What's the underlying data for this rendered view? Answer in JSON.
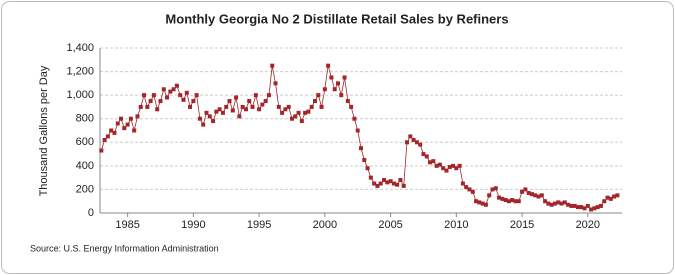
{
  "chart_data": {
    "type": "line",
    "title": "Monthly Georgia No 2 Distillate Retail Sales by Refiners",
    "y_label": "Thousand Gallons per Day",
    "source": "Source: U.S. Energy Information Administration",
    "x": [
      1983,
      1983.25,
      1983.5,
      1983.75,
      1984,
      1984.25,
      1984.5,
      1984.75,
      1985,
      1985.25,
      1985.5,
      1985.75,
      1986,
      1986.25,
      1986.5,
      1986.75,
      1987,
      1987.25,
      1987.5,
      1987.75,
      1988,
      1988.25,
      1988.5,
      1988.75,
      1989,
      1989.25,
      1989.5,
      1989.75,
      1990,
      1990.25,
      1990.5,
      1990.75,
      1991,
      1991.25,
      1991.5,
      1991.75,
      1992,
      1992.25,
      1992.5,
      1992.75,
      1993,
      1993.25,
      1993.5,
      1993.75,
      1994,
      1994.25,
      1994.5,
      1994.75,
      1995,
      1995.25,
      1995.5,
      1995.75,
      1996,
      1996.25,
      1996.5,
      1996.75,
      1997,
      1997.25,
      1997.5,
      1997.75,
      1998,
      1998.25,
      1998.5,
      1998.75,
      1999,
      1999.25,
      1999.5,
      1999.75,
      2000,
      2000.25,
      2000.5,
      2000.75,
      2001,
      2001.25,
      2001.5,
      2001.75,
      2002,
      2002.25,
      2002.5,
      2002.75,
      2003,
      2003.25,
      2003.5,
      2003.75,
      2004,
      2004.25,
      2004.5,
      2004.75,
      2005,
      2005.25,
      2005.5,
      2005.75,
      2006,
      2006.25,
      2006.5,
      2006.75,
      2007,
      2007.25,
      2007.5,
      2007.75,
      2008,
      2008.25,
      2008.5,
      2008.75,
      2009,
      2009.25,
      2009.5,
      2009.75,
      2010,
      2010.25,
      2010.5,
      2010.75,
      2011,
      2011.25,
      2011.5,
      2011.75,
      2012,
      2012.25,
      2012.5,
      2012.75,
      2013,
      2013.25,
      2013.5,
      2013.75,
      2014,
      2014.25,
      2014.5,
      2014.75,
      2015,
      2015.25,
      2015.5,
      2015.75,
      2016,
      2016.25,
      2016.5,
      2016.75,
      2017,
      2017.25,
      2017.5,
      2017.75,
      2018,
      2018.25,
      2018.5,
      2018.75,
      2019,
      2019.25,
      2019.5,
      2019.75,
      2020,
      2020.25,
      2020.5,
      2020.75,
      2021,
      2021.25,
      2021.5,
      2021.75,
      2022,
      2022.25
    ],
    "series": [
      {
        "color": "#a3262a",
        "values": [
          530,
          620,
          650,
          700,
          680,
          760,
          800,
          720,
          750,
          800,
          700,
          820,
          900,
          1000,
          900,
          950,
          1000,
          880,
          950,
          1050,
          980,
          1030,
          1050,
          1080,
          1000,
          960,
          1020,
          900,
          950,
          1000,
          800,
          750,
          850,
          820,
          780,
          860,
          880,
          850,
          900,
          950,
          870,
          980,
          820,
          900,
          880,
          950,
          900,
          1000,
          880,
          920,
          950,
          1000,
          1250,
          1100,
          900,
          850,
          880,
          900,
          800,
          820,
          850,
          780,
          850,
          860,
          900,
          950,
          1000,
          900,
          1050,
          1250,
          1150,
          1050,
          1100,
          1000,
          1150,
          950,
          900,
          800,
          700,
          550,
          450,
          380,
          300,
          250,
          230,
          250,
          280,
          260,
          270,
          250,
          240,
          280,
          230,
          600,
          650,
          620,
          600,
          580,
          500,
          480,
          430,
          440,
          400,
          410,
          380,
          360,
          390,
          400,
          380,
          400,
          250,
          220,
          200,
          180,
          100,
          90,
          80,
          70,
          150,
          200,
          210,
          130,
          120,
          110,
          100,
          110,
          100,
          100,
          180,
          200,
          170,
          160,
          150,
          140,
          150,
          100,
          80,
          70,
          80,
          90,
          80,
          90,
          70,
          60,
          60,
          50,
          50,
          40,
          60,
          30,
          40,
          50,
          60,
          100,
          130,
          120,
          140,
          150
        ]
      }
    ],
    "xlim": [
      1982.9,
      2022.6
    ],
    "xticks": [
      1985,
      1990,
      1995,
      2000,
      2005,
      2010,
      2015,
      2020
    ],
    "ylim": [
      0,
      1400
    ],
    "yticks": [
      0,
      200,
      400,
      600,
      800,
      {
        "value": 1000,
        "label": "1,000"
      },
      {
        "value": 1200,
        "label": "1,200"
      },
      {
        "value": 1400,
        "label": "1,400"
      }
    ],
    "grid": true
  }
}
